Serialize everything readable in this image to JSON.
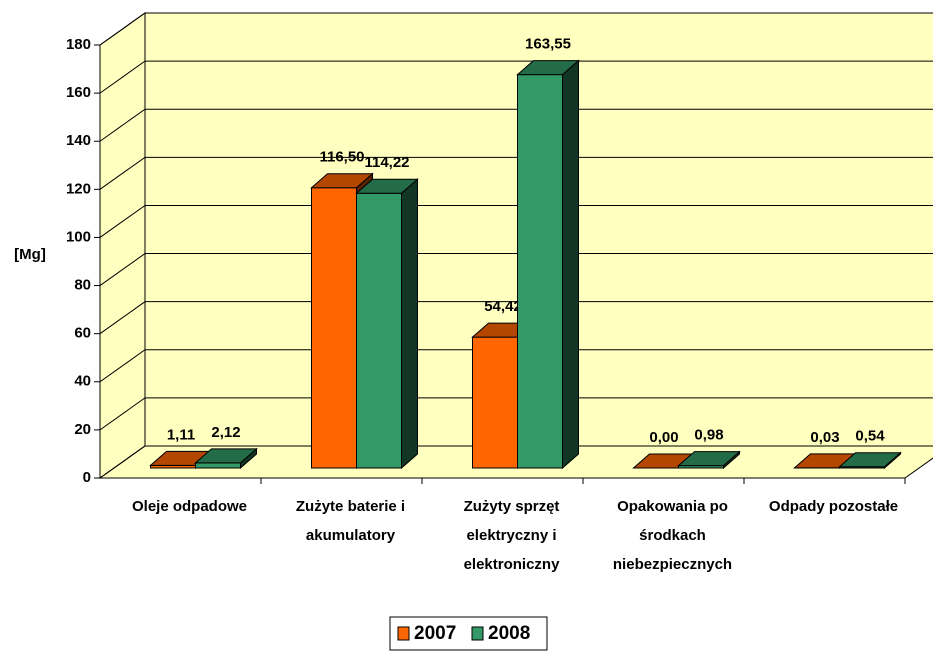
{
  "chart_data": {
    "type": "bar3d",
    "ylabel": "[Mg]",
    "categories": [
      "Oleje odpadowe",
      "Zużyte baterie i akumulatory",
      "Zużyty sprzęt elektryczny i elektroniczny",
      "Opakowania po środkach niebezpiecznych",
      "Odpady pozostałe"
    ],
    "series": [
      {
        "name": "2007",
        "color": "#ff6600",
        "values": [
          1.11,
          116.5,
          54.42,
          0.0,
          0.03
        ],
        "value_labels": [
          "1,11",
          "116,50",
          "54,42",
          "0,00",
          "0,03"
        ]
      },
      {
        "name": "2008",
        "color": "#339966",
        "values": [
          2.12,
          114.22,
          163.55,
          0.98,
          0.54
        ],
        "value_labels": [
          "2,12",
          "114,22",
          "163,55",
          "0,98",
          "0,54"
        ]
      }
    ],
    "ylim": [
      0,
      180
    ],
    "yticks": [
      0,
      20,
      40,
      60,
      80,
      100,
      120,
      140,
      160,
      180
    ],
    "grid": true,
    "legend": "bottom"
  }
}
